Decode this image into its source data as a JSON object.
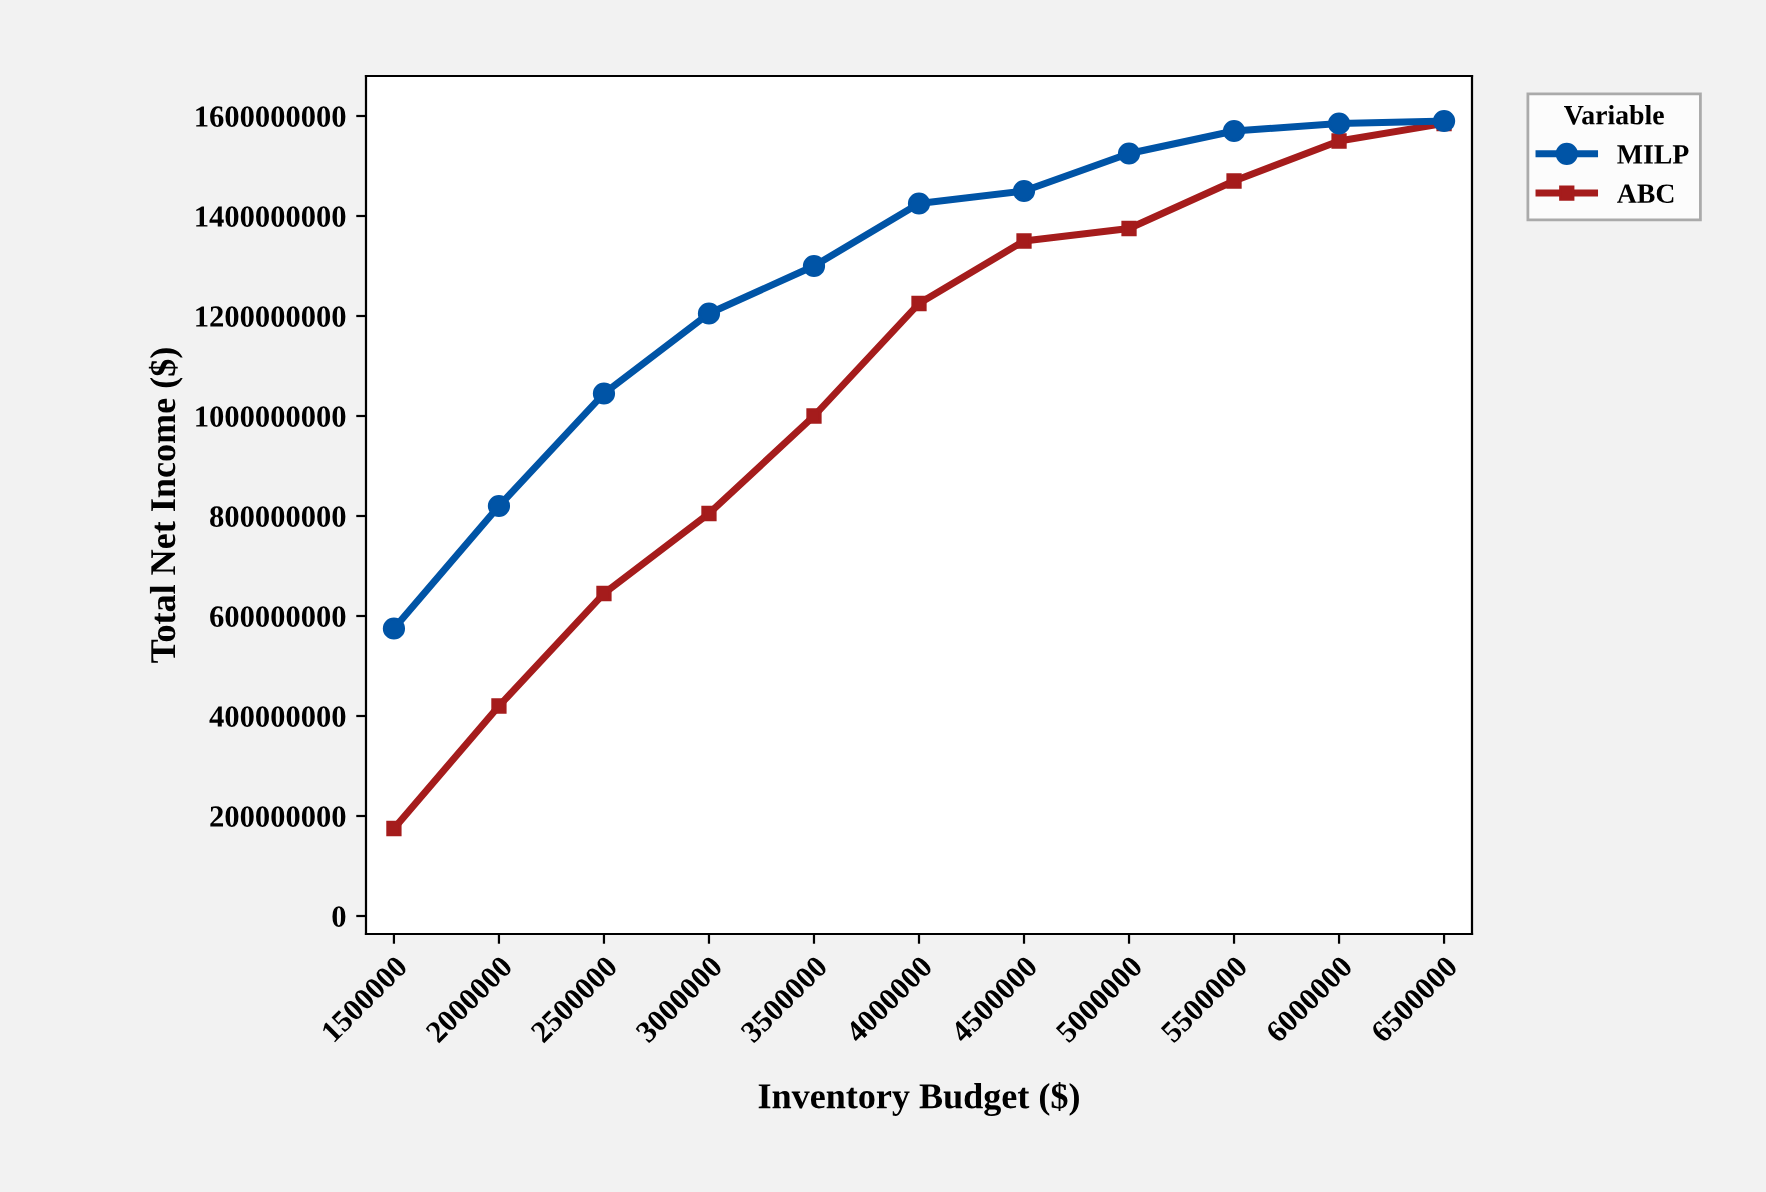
{
  "chart_data": {
    "type": "line",
    "xlabel": "Inventory Budget ($)",
    "ylabel": "Total Net Income ($)",
    "legend_title": "Variable",
    "legend": "top right",
    "x": [
      1500000,
      2000000,
      2500000,
      3000000,
      3500000,
      4000000,
      4500000,
      5000000,
      5500000,
      6000000,
      6500000
    ],
    "series": [
      {
        "name": "MILP",
        "color": "#0054a6",
        "marker": "circle",
        "values": [
          575000000,
          820000000,
          1045000000,
          1205000000,
          1300000000,
          1425000000,
          1450000000,
          1525000000,
          1570000000,
          1585000000,
          1590000000
        ]
      },
      {
        "name": "ABC",
        "color": "#a51c1c",
        "marker": "square",
        "values": [
          175000000,
          420000000,
          645000000,
          805000000,
          1000000000,
          1225000000,
          1350000000,
          1375000000,
          1470000000,
          1550000000,
          1585000000
        ]
      }
    ],
    "xlim": [
      1367000,
      6633000
    ],
    "xticks": [
      1500000,
      2000000,
      2500000,
      3000000,
      3500000,
      4000000,
      4500000,
      5000000,
      5500000,
      6000000,
      6500000
    ],
    "ylim": [
      -36000000,
      1680000000
    ],
    "yticks": [
      0,
      200000000,
      400000000,
      600000000,
      800000000,
      1000000000,
      1200000000,
      1400000000,
      1600000000
    ],
    "grid": false,
    "line_style": "solid"
  }
}
